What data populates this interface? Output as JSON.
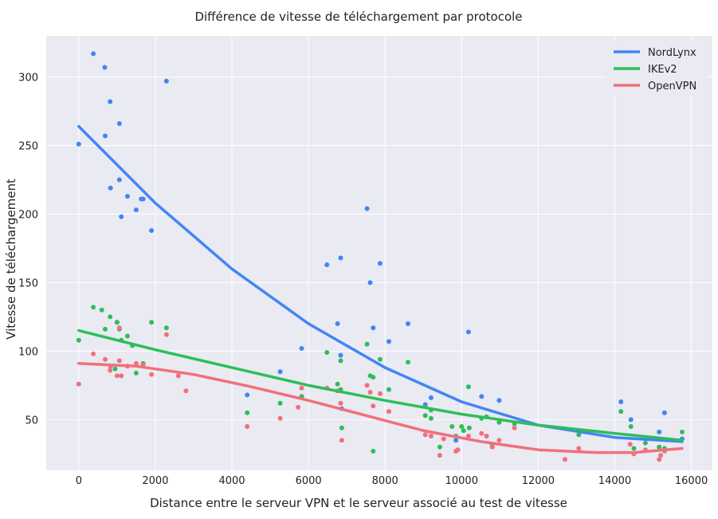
{
  "chart_data": {
    "type": "scatter",
    "title": "Différence de vitesse de téléchargement par protocole",
    "xlabel": "Distance entre le serveur VPN et le serveur associé au test de vitesse",
    "ylabel": "Vitesse de téléchargement",
    "xlim": [
      -850,
      16550
    ],
    "ylim": [
      13,
      330
    ],
    "x_ticks": [
      0,
      2000,
      4000,
      6000,
      8000,
      10000,
      12000,
      14000,
      16000
    ],
    "y_ticks": [
      50,
      100,
      150,
      200,
      250,
      300
    ],
    "grid": true,
    "legend_position": "top-right",
    "series": [
      {
        "name": "NordLynx",
        "color": "#4285f4",
        "points": [
          [
            0,
            251
          ],
          [
            380,
            317
          ],
          [
            680,
            307
          ],
          [
            690,
            257
          ],
          [
            820,
            282
          ],
          [
            830,
            219
          ],
          [
            1000,
            121
          ],
          [
            1060,
            266
          ],
          [
            1060,
            225
          ],
          [
            1110,
            198
          ],
          [
            1270,
            213
          ],
          [
            1500,
            203
          ],
          [
            1630,
            211
          ],
          [
            1680,
            211
          ],
          [
            1900,
            188
          ],
          [
            2290,
            297
          ],
          [
            4400,
            68
          ],
          [
            5260,
            85
          ],
          [
            5820,
            102
          ],
          [
            6480,
            163
          ],
          [
            6760,
            120
          ],
          [
            6840,
            168
          ],
          [
            6840,
            97
          ],
          [
            6870,
            58
          ],
          [
            7530,
            204
          ],
          [
            7610,
            150
          ],
          [
            7690,
            117
          ],
          [
            7870,
            164
          ],
          [
            8100,
            107
          ],
          [
            8600,
            120
          ],
          [
            9050,
            61
          ],
          [
            9200,
            66
          ],
          [
            9850,
            35
          ],
          [
            10180,
            114
          ],
          [
            10520,
            67
          ],
          [
            10650,
            52
          ],
          [
            10980,
            64
          ],
          [
            13060,
            42
          ],
          [
            14160,
            63
          ],
          [
            14420,
            50
          ],
          [
            15160,
            41
          ],
          [
            15300,
            55
          ],
          [
            15760,
            36
          ]
        ],
        "trend": [
          [
            0,
            264
          ],
          [
            2000,
            208
          ],
          [
            4000,
            160
          ],
          [
            6000,
            120
          ],
          [
            8000,
            88
          ],
          [
            10000,
            63
          ],
          [
            12000,
            46
          ],
          [
            14000,
            37
          ],
          [
            15760,
            34
          ]
        ]
      },
      {
        "name": "IKEv2",
        "color": "#2dbe5a",
        "points": [
          [
            0,
            108
          ],
          [
            380,
            132
          ],
          [
            600,
            130
          ],
          [
            690,
            116
          ],
          [
            820,
            125
          ],
          [
            830,
            89
          ],
          [
            950,
            87
          ],
          [
            1000,
            121
          ],
          [
            1060,
            116
          ],
          [
            1110,
            108
          ],
          [
            1270,
            111
          ],
          [
            1400,
            104
          ],
          [
            1500,
            84
          ],
          [
            1680,
            91
          ],
          [
            1900,
            121
          ],
          [
            2290,
            117
          ],
          [
            4400,
            55
          ],
          [
            5260,
            62
          ],
          [
            5820,
            67
          ],
          [
            6480,
            99
          ],
          [
            6760,
            76
          ],
          [
            6840,
            93
          ],
          [
            6840,
            72
          ],
          [
            6870,
            44
          ],
          [
            7530,
            105
          ],
          [
            7610,
            82
          ],
          [
            7690,
            81
          ],
          [
            7690,
            27
          ],
          [
            7870,
            94
          ],
          [
            8100,
            72
          ],
          [
            8600,
            92
          ],
          [
            9050,
            53
          ],
          [
            9200,
            51
          ],
          [
            9200,
            57
          ],
          [
            9430,
            30
          ],
          [
            9750,
            45
          ],
          [
            9850,
            38
          ],
          [
            10000,
            45
          ],
          [
            10050,
            42
          ],
          [
            10180,
            74
          ],
          [
            10200,
            44
          ],
          [
            10520,
            51
          ],
          [
            10650,
            52
          ],
          [
            10800,
            32
          ],
          [
            10980,
            48
          ],
          [
            11380,
            47
          ],
          [
            13060,
            39
          ],
          [
            14160,
            56
          ],
          [
            14420,
            45
          ],
          [
            14500,
            29
          ],
          [
            14800,
            33
          ],
          [
            15160,
            30
          ],
          [
            15300,
            29
          ],
          [
            15760,
            41
          ]
        ],
        "trend": [
          [
            0,
            115
          ],
          [
            2000,
            101
          ],
          [
            4000,
            88
          ],
          [
            6000,
            75
          ],
          [
            8000,
            64
          ],
          [
            10000,
            54
          ],
          [
            12000,
            46
          ],
          [
            14000,
            40
          ],
          [
            15760,
            35
          ]
        ]
      },
      {
        "name": "OpenVPN",
        "color": "#f0707c",
        "points": [
          [
            0,
            76
          ],
          [
            380,
            98
          ],
          [
            690,
            94
          ],
          [
            820,
            86
          ],
          [
            830,
            89
          ],
          [
            1000,
            82
          ],
          [
            1060,
            93
          ],
          [
            1060,
            117
          ],
          [
            1110,
            82
          ],
          [
            1270,
            89
          ],
          [
            1500,
            91
          ],
          [
            1680,
            90
          ],
          [
            1900,
            83
          ],
          [
            2290,
            112
          ],
          [
            2600,
            82
          ],
          [
            2800,
            71
          ],
          [
            4400,
            45
          ],
          [
            5260,
            51
          ],
          [
            5730,
            59
          ],
          [
            5820,
            73
          ],
          [
            6480,
            73
          ],
          [
            6760,
            71
          ],
          [
            6840,
            62
          ],
          [
            6870,
            35
          ],
          [
            7530,
            75
          ],
          [
            7610,
            70
          ],
          [
            7690,
            60
          ],
          [
            7870,
            69
          ],
          [
            8100,
            56
          ],
          [
            9050,
            39
          ],
          [
            9200,
            38
          ],
          [
            9430,
            24
          ],
          [
            9530,
            36
          ],
          [
            9850,
            27
          ],
          [
            9900,
            28
          ],
          [
            10180,
            38
          ],
          [
            10520,
            40
          ],
          [
            10650,
            38
          ],
          [
            10800,
            30
          ],
          [
            10980,
            35
          ],
          [
            11380,
            44
          ],
          [
            12700,
            21
          ],
          [
            13060,
            29
          ],
          [
            14400,
            32
          ],
          [
            14500,
            25
          ],
          [
            14800,
            28
          ],
          [
            15160,
            21
          ],
          [
            15200,
            24
          ],
          [
            15300,
            27
          ]
        ],
        "trend": [
          [
            0,
            91
          ],
          [
            1500,
            89
          ],
          [
            3000,
            83
          ],
          [
            4500,
            74
          ],
          [
            6000,
            64
          ],
          [
            7500,
            53
          ],
          [
            9000,
            42
          ],
          [
            10500,
            34
          ],
          [
            12000,
            28
          ],
          [
            13500,
            26
          ],
          [
            14500,
            26
          ],
          [
            15760,
            29
          ]
        ]
      }
    ]
  }
}
